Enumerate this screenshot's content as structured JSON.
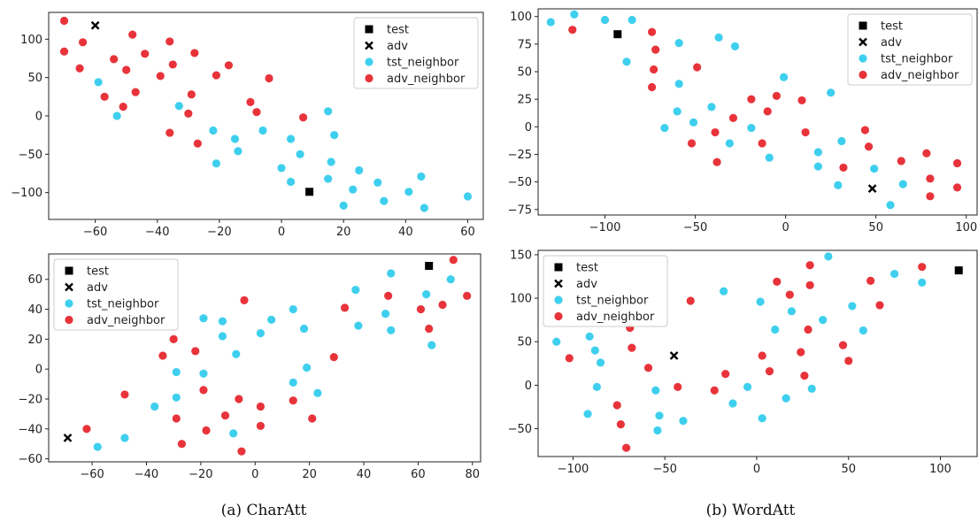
{
  "colors": {
    "test": "#000000",
    "adv": "#000000",
    "tst_neighbor": "#3fcfee",
    "adv_neighbor": "#e8333a",
    "axes": "#222222"
  },
  "captions": {
    "left": "(a) CharAtt",
    "right": "(b) WordAtt"
  },
  "chart_data": [
    {
      "id": "charatt-top",
      "type": "scatter",
      "xlim": [
        -75,
        65
      ],
      "ylim": [
        -135,
        135
      ],
      "xticks": [
        -60,
        -40,
        -20,
        0,
        20,
        40,
        60
      ],
      "yticks": [
        -100,
        -50,
        0,
        50,
        100
      ],
      "legend": [
        "test",
        "adv",
        "tst_neighbor",
        "adv_neighbor"
      ],
      "legend_position": "top-right",
      "series": [
        {
          "name": "test",
          "marker": "square",
          "points": [
            [
              9,
              -99
            ]
          ]
        },
        {
          "name": "adv",
          "marker": "x",
          "points": [
            [
              -60,
              118
            ]
          ]
        },
        {
          "name": "tst_neighbor",
          "marker": "circle",
          "points": [
            [
              -59,
              44
            ],
            [
              -53,
              0
            ],
            [
              -33,
              13
            ],
            [
              -22,
              -19
            ],
            [
              -21,
              -62
            ],
            [
              -15,
              -30
            ],
            [
              -14,
              -46
            ],
            [
              -6,
              -19
            ],
            [
              0,
              -68
            ],
            [
              3,
              -30
            ],
            [
              3,
              -86
            ],
            [
              6,
              -50
            ],
            [
              15,
              6
            ],
            [
              15,
              -82
            ],
            [
              16,
              -60
            ],
            [
              17,
              -25
            ],
            [
              20,
              -117
            ],
            [
              23,
              -96
            ],
            [
              25,
              -71
            ],
            [
              31,
              -87
            ],
            [
              33,
              -111
            ],
            [
              41,
              -99
            ],
            [
              45,
              -79
            ],
            [
              46,
              -120
            ],
            [
              60,
              -105
            ]
          ]
        },
        {
          "name": "adv_neighbor",
          "marker": "circle",
          "points": [
            [
              -70,
              124
            ],
            [
              -70,
              84
            ],
            [
              -64,
              96
            ],
            [
              -65,
              62
            ],
            [
              -57,
              25
            ],
            [
              -54,
              74
            ],
            [
              -50,
              60
            ],
            [
              -51,
              12
            ],
            [
              -48,
              106
            ],
            [
              -47,
              31
            ],
            [
              -44,
              81
            ],
            [
              -39,
              52
            ],
            [
              -36,
              97
            ],
            [
              -35,
              67
            ],
            [
              -36,
              -22
            ],
            [
              -30,
              3
            ],
            [
              -29,
              28
            ],
            [
              -28,
              82
            ],
            [
              -27,
              -36
            ],
            [
              -21,
              53
            ],
            [
              -17,
              66
            ],
            [
              -10,
              18
            ],
            [
              -8,
              5
            ],
            [
              -4,
              49
            ],
            [
              7,
              -2
            ]
          ]
        }
      ]
    },
    {
      "id": "wordatt-top",
      "type": "scatter",
      "xlim": [
        -137,
        106
      ],
      "ylim": [
        -80,
        107
      ],
      "xticks": [
        -100,
        -50,
        0,
        50,
        100
      ],
      "yticks": [
        -75,
        -50,
        -25,
        0,
        25,
        50,
        75,
        100
      ],
      "legend": [
        "test",
        "adv",
        "tst_neighbor",
        "adv_neighbor"
      ],
      "legend_position": "top-right",
      "series": [
        {
          "name": "test",
          "marker": "square",
          "points": [
            [
              -93,
              84
            ]
          ]
        },
        {
          "name": "adv",
          "marker": "x",
          "points": [
            [
              48,
              -56
            ]
          ]
        },
        {
          "name": "tst_neighbor",
          "marker": "circle",
          "points": [
            [
              -130,
              95
            ],
            [
              -117,
              102
            ],
            [
              -100,
              97
            ],
            [
              -85,
              97
            ],
            [
              -88,
              59
            ],
            [
              -67,
              -1
            ],
            [
              -59,
              76
            ],
            [
              -59,
              39
            ],
            [
              -60,
              14
            ],
            [
              -51,
              4
            ],
            [
              -41,
              18
            ],
            [
              -37,
              81
            ],
            [
              -28,
              73
            ],
            [
              -31,
              -15
            ],
            [
              -19,
              -1
            ],
            [
              -9,
              -28
            ],
            [
              -1,
              45
            ],
            [
              18,
              -23
            ],
            [
              25,
              31
            ],
            [
              18,
              -36
            ],
            [
              29,
              -53
            ],
            [
              31,
              -13
            ],
            [
              49,
              -38
            ],
            [
              65,
              -52
            ],
            [
              58,
              -71
            ]
          ]
        },
        {
          "name": "adv_neighbor",
          "marker": "circle",
          "points": [
            [
              -118,
              88
            ],
            [
              -74,
              86
            ],
            [
              -72,
              70
            ],
            [
              -73,
              52
            ],
            [
              -74,
              36
            ],
            [
              -52,
              -15
            ],
            [
              -49,
              54
            ],
            [
              -39,
              -5
            ],
            [
              -38,
              -32
            ],
            [
              -29,
              8
            ],
            [
              -19,
              25
            ],
            [
              -13,
              -15
            ],
            [
              -10,
              14
            ],
            [
              -5,
              28
            ],
            [
              9,
              24
            ],
            [
              11,
              -5
            ],
            [
              32,
              -37
            ],
            [
              44,
              -3
            ],
            [
              46,
              -18
            ],
            [
              64,
              -31
            ],
            [
              78,
              -24
            ],
            [
              80,
              -47
            ],
            [
              80,
              -63
            ],
            [
              95,
              -33
            ],
            [
              95,
              -55
            ]
          ]
        }
      ]
    },
    {
      "id": "charatt-bottom",
      "type": "scatter",
      "xlim": [
        -76,
        83
      ],
      "ylim": [
        -62,
        77
      ],
      "xticks": [
        -60,
        -40,
        -20,
        0,
        20,
        40,
        60,
        80
      ],
      "yticks": [
        -60,
        -40,
        -20,
        0,
        20,
        40,
        60
      ],
      "legend": [
        "test",
        "adv",
        "tst_neighbor",
        "adv_neighbor"
      ],
      "legend_position": "top-left",
      "series": [
        {
          "name": "test",
          "marker": "square",
          "points": [
            [
              64,
              69
            ]
          ]
        },
        {
          "name": "adv",
          "marker": "x",
          "points": [
            [
              -69,
              -46
            ]
          ]
        },
        {
          "name": "tst_neighbor",
          "marker": "circle",
          "points": [
            [
              -58,
              -52
            ],
            [
              -48,
              -46
            ],
            [
              -37,
              -25
            ],
            [
              -29,
              -2
            ],
            [
              -29,
              -19
            ],
            [
              -19,
              -3
            ],
            [
              -19,
              34
            ],
            [
              -12,
              32
            ],
            [
              -12,
              22
            ],
            [
              -8,
              -43
            ],
            [
              -7,
              10
            ],
            [
              2,
              24
            ],
            [
              6,
              33
            ],
            [
              14,
              40
            ],
            [
              14,
              -9
            ],
            [
              18,
              27
            ],
            [
              19,
              1
            ],
            [
              23,
              -16
            ],
            [
              37,
              53
            ],
            [
              38,
              29
            ],
            [
              48,
              37
            ],
            [
              50,
              26
            ],
            [
              50,
              64
            ],
            [
              63,
              50
            ],
            [
              65,
              16
            ],
            [
              72,
              60
            ]
          ]
        },
        {
          "name": "adv_neighbor",
          "marker": "circle",
          "points": [
            [
              -62,
              -40
            ],
            [
              -48,
              -17
            ],
            [
              -34,
              9
            ],
            [
              -30,
              20
            ],
            [
              -29,
              -33
            ],
            [
              -27,
              -50
            ],
            [
              -22,
              12
            ],
            [
              -19,
              -14
            ],
            [
              -18,
              -41
            ],
            [
              -11,
              -31
            ],
            [
              -6,
              -20
            ],
            [
              -5,
              -55
            ],
            [
              -4,
              46
            ],
            [
              2,
              -25
            ],
            [
              2,
              -38
            ],
            [
              14,
              -21
            ],
            [
              21,
              -33
            ],
            [
              29,
              8
            ],
            [
              33,
              41
            ],
            [
              49,
              49
            ],
            [
              61,
              40
            ],
            [
              64,
              27
            ],
            [
              69,
              43
            ],
            [
              73,
              73
            ],
            [
              78,
              49
            ]
          ]
        }
      ]
    },
    {
      "id": "wordatt-bottom",
      "type": "scatter",
      "xlim": [
        -119,
        120
      ],
      "ylim": [
        -82,
        155
      ],
      "xticks": [
        -100,
        -50,
        0,
        50,
        100
      ],
      "yticks": [
        -50,
        0,
        50,
        100,
        150
      ],
      "legend": [
        "test",
        "adv",
        "tst_neighbor",
        "adv_neighbor"
      ],
      "legend_position": "top-left",
      "series": [
        {
          "name": "test",
          "marker": "square",
          "points": [
            [
              110,
              132
            ]
          ]
        },
        {
          "name": "adv",
          "marker": "x",
          "points": [
            [
              -45,
              34
            ]
          ]
        },
        {
          "name": "tst_neighbor",
          "marker": "circle",
          "points": [
            [
              -109,
              50
            ],
            [
              -92,
              -33
            ],
            [
              -88,
              40
            ],
            [
              -87,
              -2
            ],
            [
              -85,
              26
            ],
            [
              -91,
              56
            ],
            [
              -55,
              -6
            ],
            [
              -54,
              -52
            ],
            [
              -53,
              -35
            ],
            [
              -40,
              -41
            ],
            [
              -18,
              108
            ],
            [
              -13,
              -21
            ],
            [
              -5,
              -2
            ],
            [
              2,
              96
            ],
            [
              3,
              -38
            ],
            [
              10,
              64
            ],
            [
              16,
              -15
            ],
            [
              19,
              85
            ],
            [
              30,
              -4
            ],
            [
              36,
              75
            ],
            [
              39,
              148
            ],
            [
              52,
              91
            ],
            [
              58,
              63
            ],
            [
              75,
              128
            ],
            [
              90,
              118
            ]
          ]
        },
        {
          "name": "adv_neighbor",
          "marker": "circle",
          "points": [
            [
              -102,
              31
            ],
            [
              -76,
              -23
            ],
            [
              -74,
              -45
            ],
            [
              -71,
              -72
            ],
            [
              -69,
              66
            ],
            [
              -68,
              43
            ],
            [
              -59,
              20
            ],
            [
              -43,
              -2
            ],
            [
              -36,
              97
            ],
            [
              -23,
              -6
            ],
            [
              -17,
              13
            ],
            [
              3,
              34
            ],
            [
              7,
              16
            ],
            [
              11,
              119
            ],
            [
              18,
              104
            ],
            [
              24,
              38
            ],
            [
              26,
              11
            ],
            [
              28,
              64
            ],
            [
              29,
              115
            ],
            [
              29,
              138
            ],
            [
              47,
              46
            ],
            [
              50,
              28
            ],
            [
              62,
              120
            ],
            [
              67,
              92
            ],
            [
              90,
              136
            ]
          ]
        }
      ]
    }
  ]
}
